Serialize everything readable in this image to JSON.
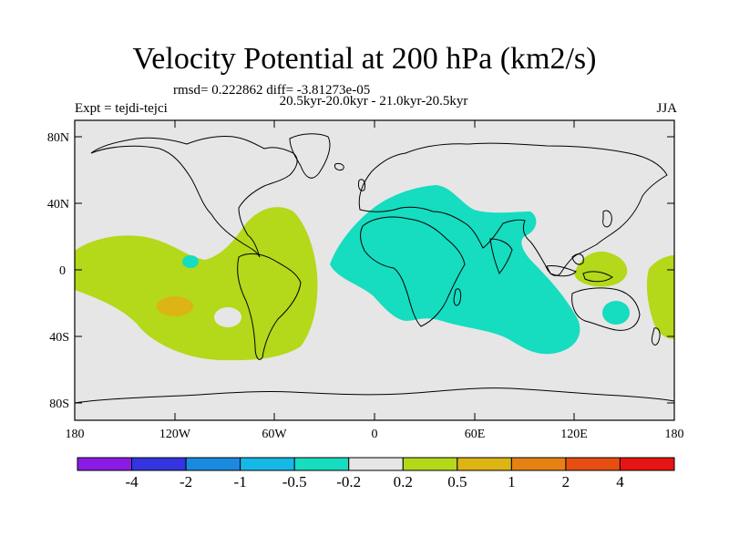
{
  "title": "Velocity Potential at 200 hPa (km2/s)",
  "stats": "rmsd= 0.222862 diff= -3.81273e-05",
  "subtitle": "20.5kyr-20.0kyr - 21.0kyr-20.5kyr",
  "left_label": "Expt = tejdi-tejci",
  "right_label": "JJA",
  "axes": {
    "lat_labels": [
      "80N",
      "40N",
      "0",
      "40S",
      "80S"
    ],
    "lon_labels": [
      "180",
      "120W",
      "60W",
      "0",
      "60E",
      "120E",
      "180"
    ]
  },
  "colorbar": {
    "colors": [
      "#8a1be6",
      "#3434e0",
      "#1a8ae0",
      "#16b9e6",
      "#16dcc0",
      "#e6e6e6",
      "#b4d81a",
      "#dcb414",
      "#e68214",
      "#e64e14",
      "#e61414"
    ],
    "labels": [
      "-4",
      "-2",
      "-1",
      "-0.5",
      "-0.2",
      "0.2",
      "0.5",
      "1",
      "2",
      "4"
    ]
  },
  "colors": {
    "background": "#e6e6e6",
    "positive": "#b4d81a",
    "negative": "#16dcc0",
    "strong_positive": "#dcb414"
  }
}
